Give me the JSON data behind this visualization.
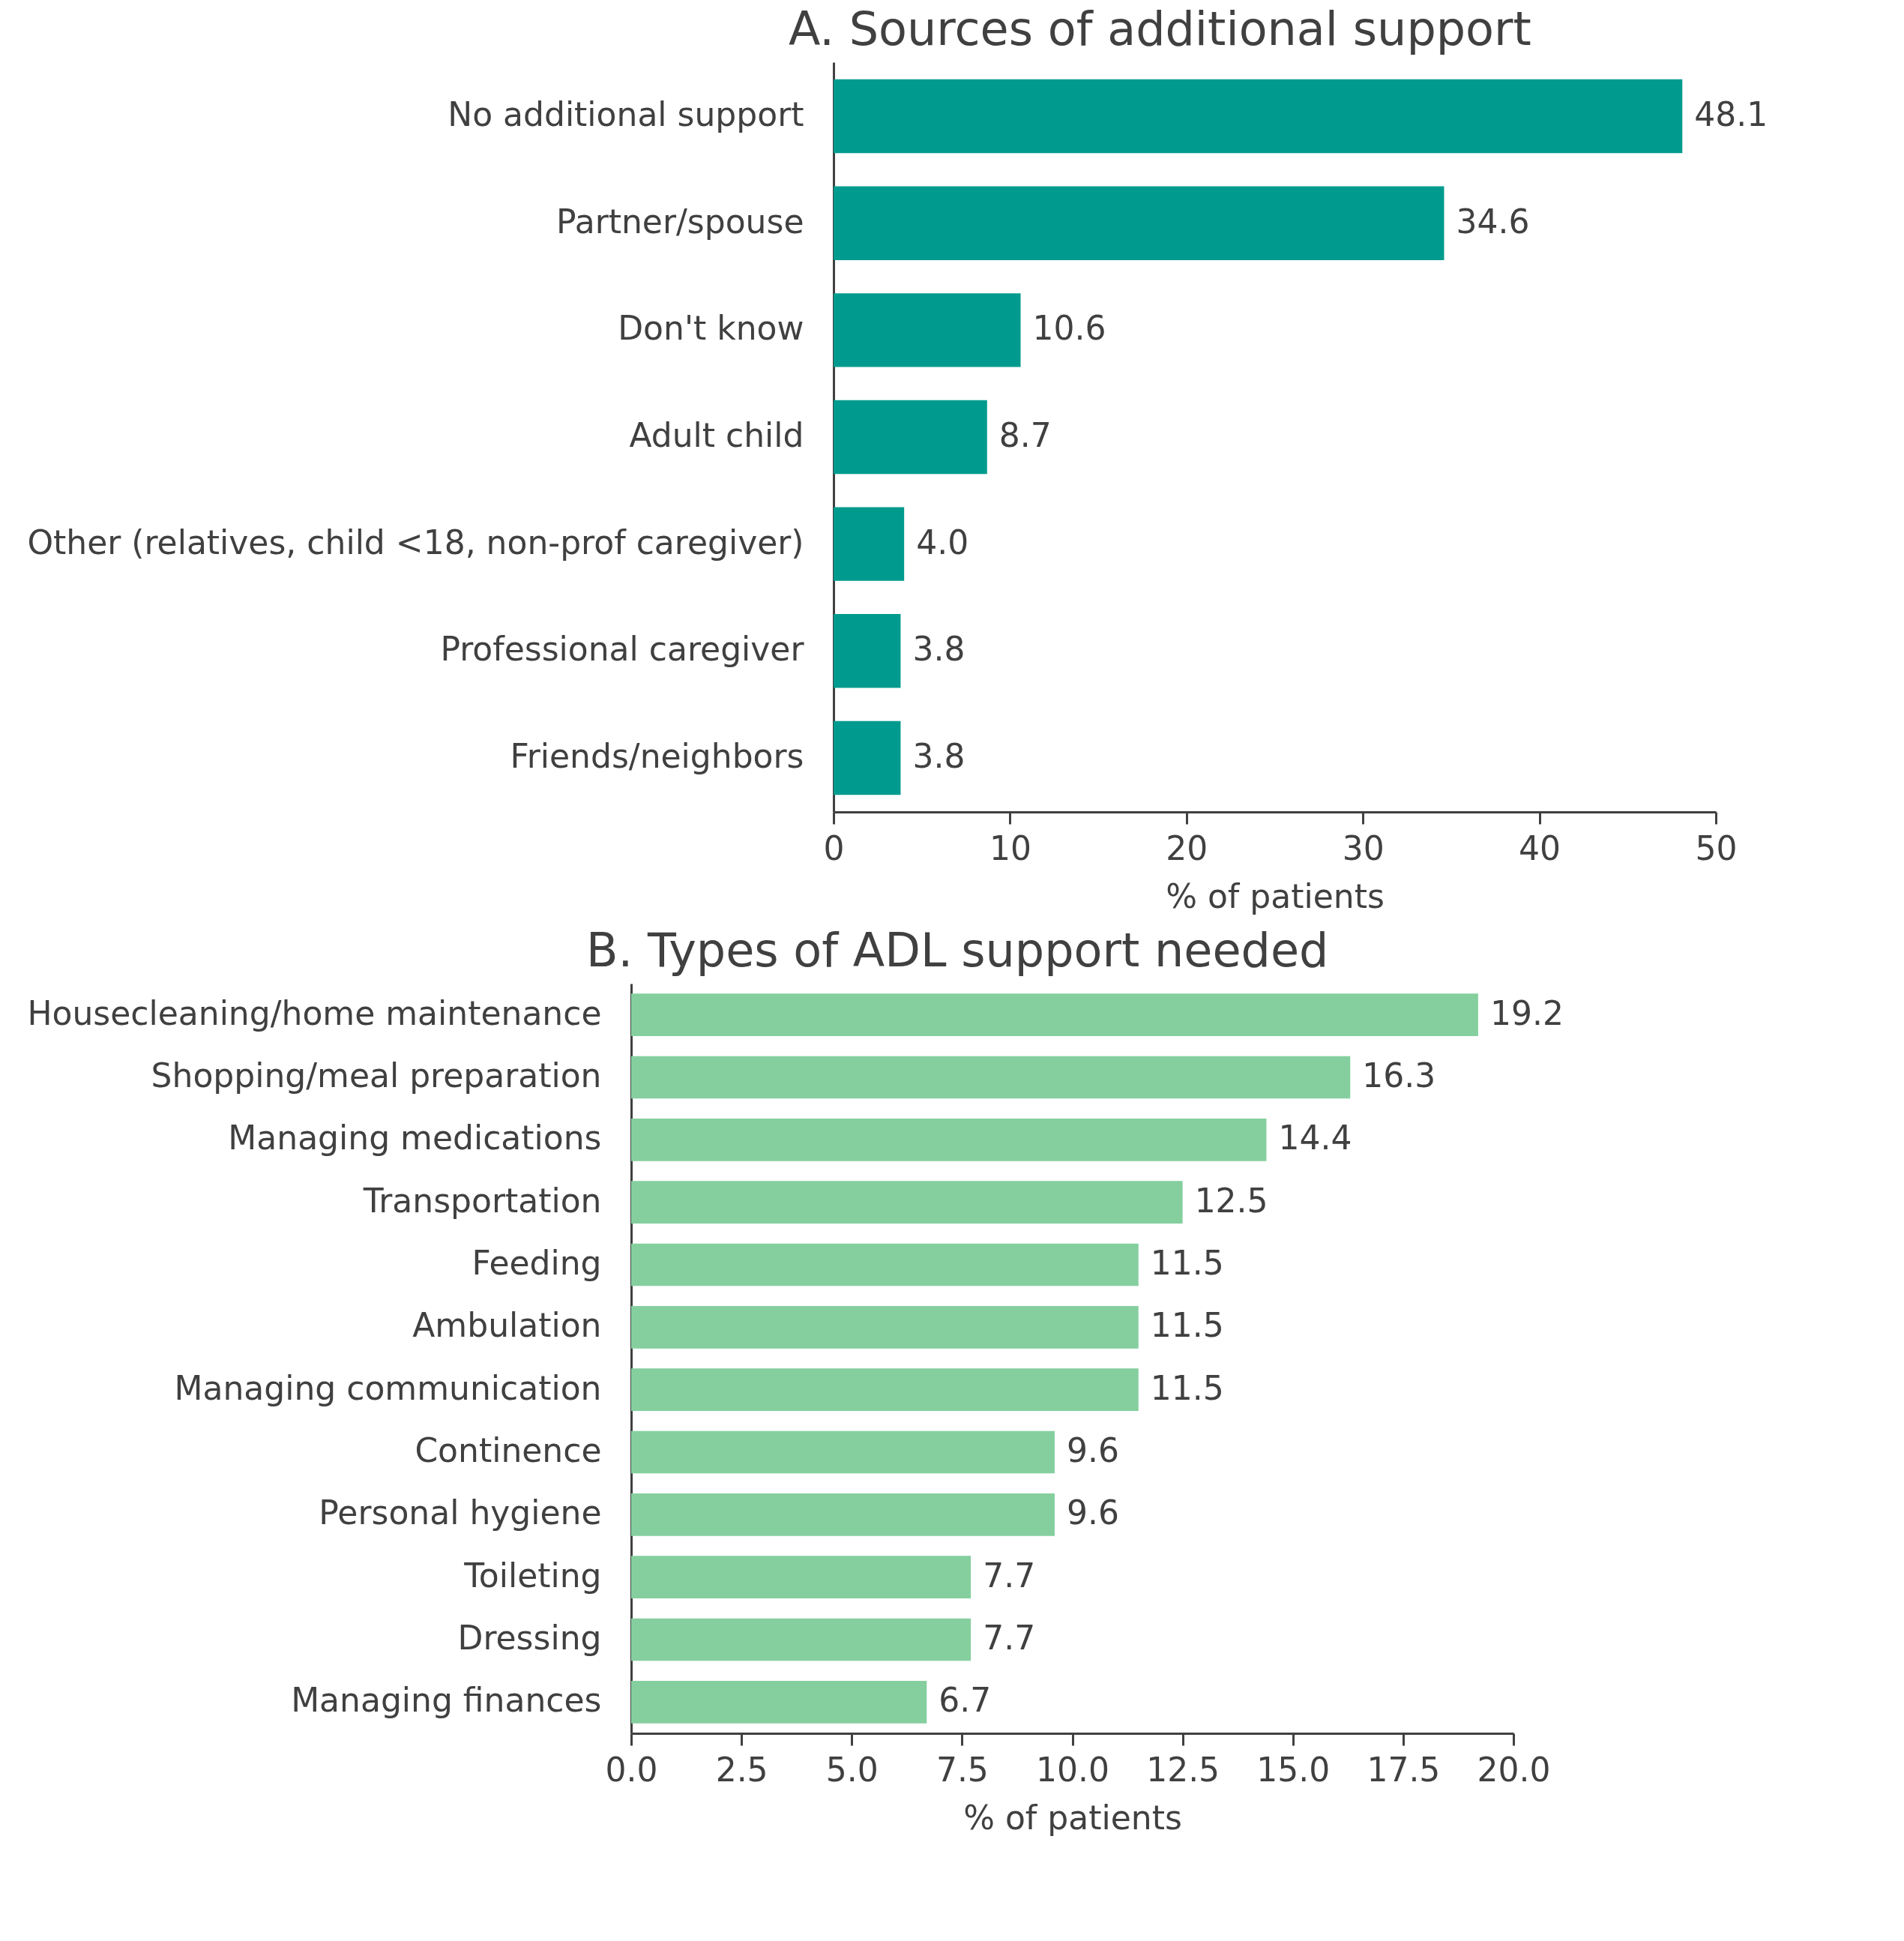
{
  "chart_data": [
    {
      "type": "bar",
      "orientation": "horizontal",
      "title": "A. Sources of additional support",
      "xlabel": "% of patients",
      "categories": [
        "No additional support",
        "Partner/spouse",
        "Don't know",
        "Adult child",
        "Other (relatives, child <18, non-prof caregiver)",
        "Professional caregiver",
        "Friends/neighbors"
      ],
      "values": [
        48.1,
        34.6,
        10.6,
        8.7,
        4.0,
        3.8,
        3.8
      ],
      "value_labels": [
        "48.1",
        "34.6",
        "10.6",
        "8.7",
        "4.0",
        "3.8",
        "3.8"
      ],
      "color": "#009b8e",
      "xlim": [
        0,
        50
      ],
      "xticks": [
        0,
        10,
        20,
        30,
        40,
        50
      ],
      "grid": false
    },
    {
      "type": "bar",
      "orientation": "horizontal",
      "title": "B. Types of ADL support needed",
      "xlabel": "% of patients",
      "categories": [
        "Housecleaning/home maintenance",
        "Shopping/meal preparation",
        "Managing medications",
        "Transportation",
        "Feeding",
        "Ambulation",
        "Managing communication",
        "Continence",
        "Personal hygiene",
        "Toileting",
        "Dressing",
        "Managing finances"
      ],
      "values": [
        19.2,
        16.3,
        14.4,
        12.5,
        11.5,
        11.5,
        11.5,
        9.6,
        9.6,
        7.7,
        7.7,
        6.7
      ],
      "value_labels": [
        "19.2",
        "16.3",
        "14.4",
        "12.5",
        "11.5",
        "11.5",
        "11.5",
        "9.6",
        "9.6",
        "7.7",
        "7.7",
        "6.7"
      ],
      "color": "#85cf9f",
      "xlim": [
        0,
        20
      ],
      "xticks": [
        {
          "value": 0,
          "label": "0.0"
        },
        2.5,
        {
          "value": 5,
          "label": "5.0"
        },
        7.5,
        {
          "value": 10,
          "label": "10.0"
        },
        12.5,
        {
          "value": 15,
          "label": "15.0"
        },
        17.5,
        {
          "value": 20,
          "label": "20.0"
        }
      ],
      "grid": false
    }
  ]
}
